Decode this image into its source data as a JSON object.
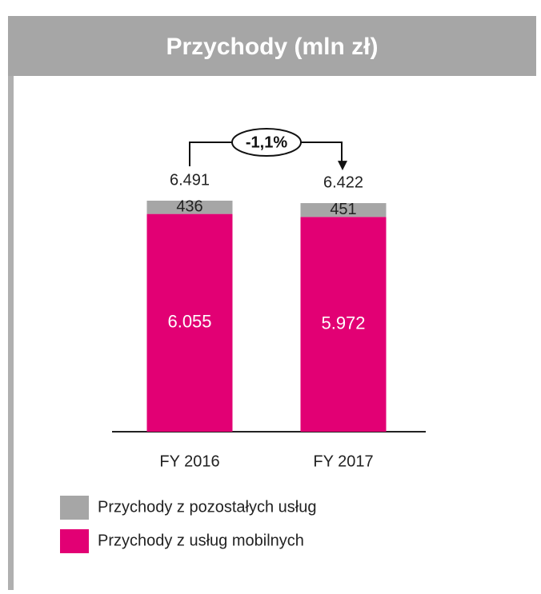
{
  "chart_data": {
    "type": "stacked-bar",
    "title": "Przychody (mln zł)",
    "categories": [
      "FY 2016",
      "FY 2017"
    ],
    "series": [
      {
        "name": "Przychody z usług mobilnych",
        "color": "#e20074",
        "values": [
          6055,
          5972
        ],
        "value_labels": [
          "6.055",
          "5.972"
        ]
      },
      {
        "name": "Przychody z pozostałych usług",
        "color": "#a6a6a6",
        "values": [
          436,
          451
        ]
      }
    ],
    "totals": {
      "values": [
        6491,
        6422
      ],
      "value_labels": [
        "6.491",
        "6.422"
      ]
    },
    "annotation": "-1,1%"
  }
}
